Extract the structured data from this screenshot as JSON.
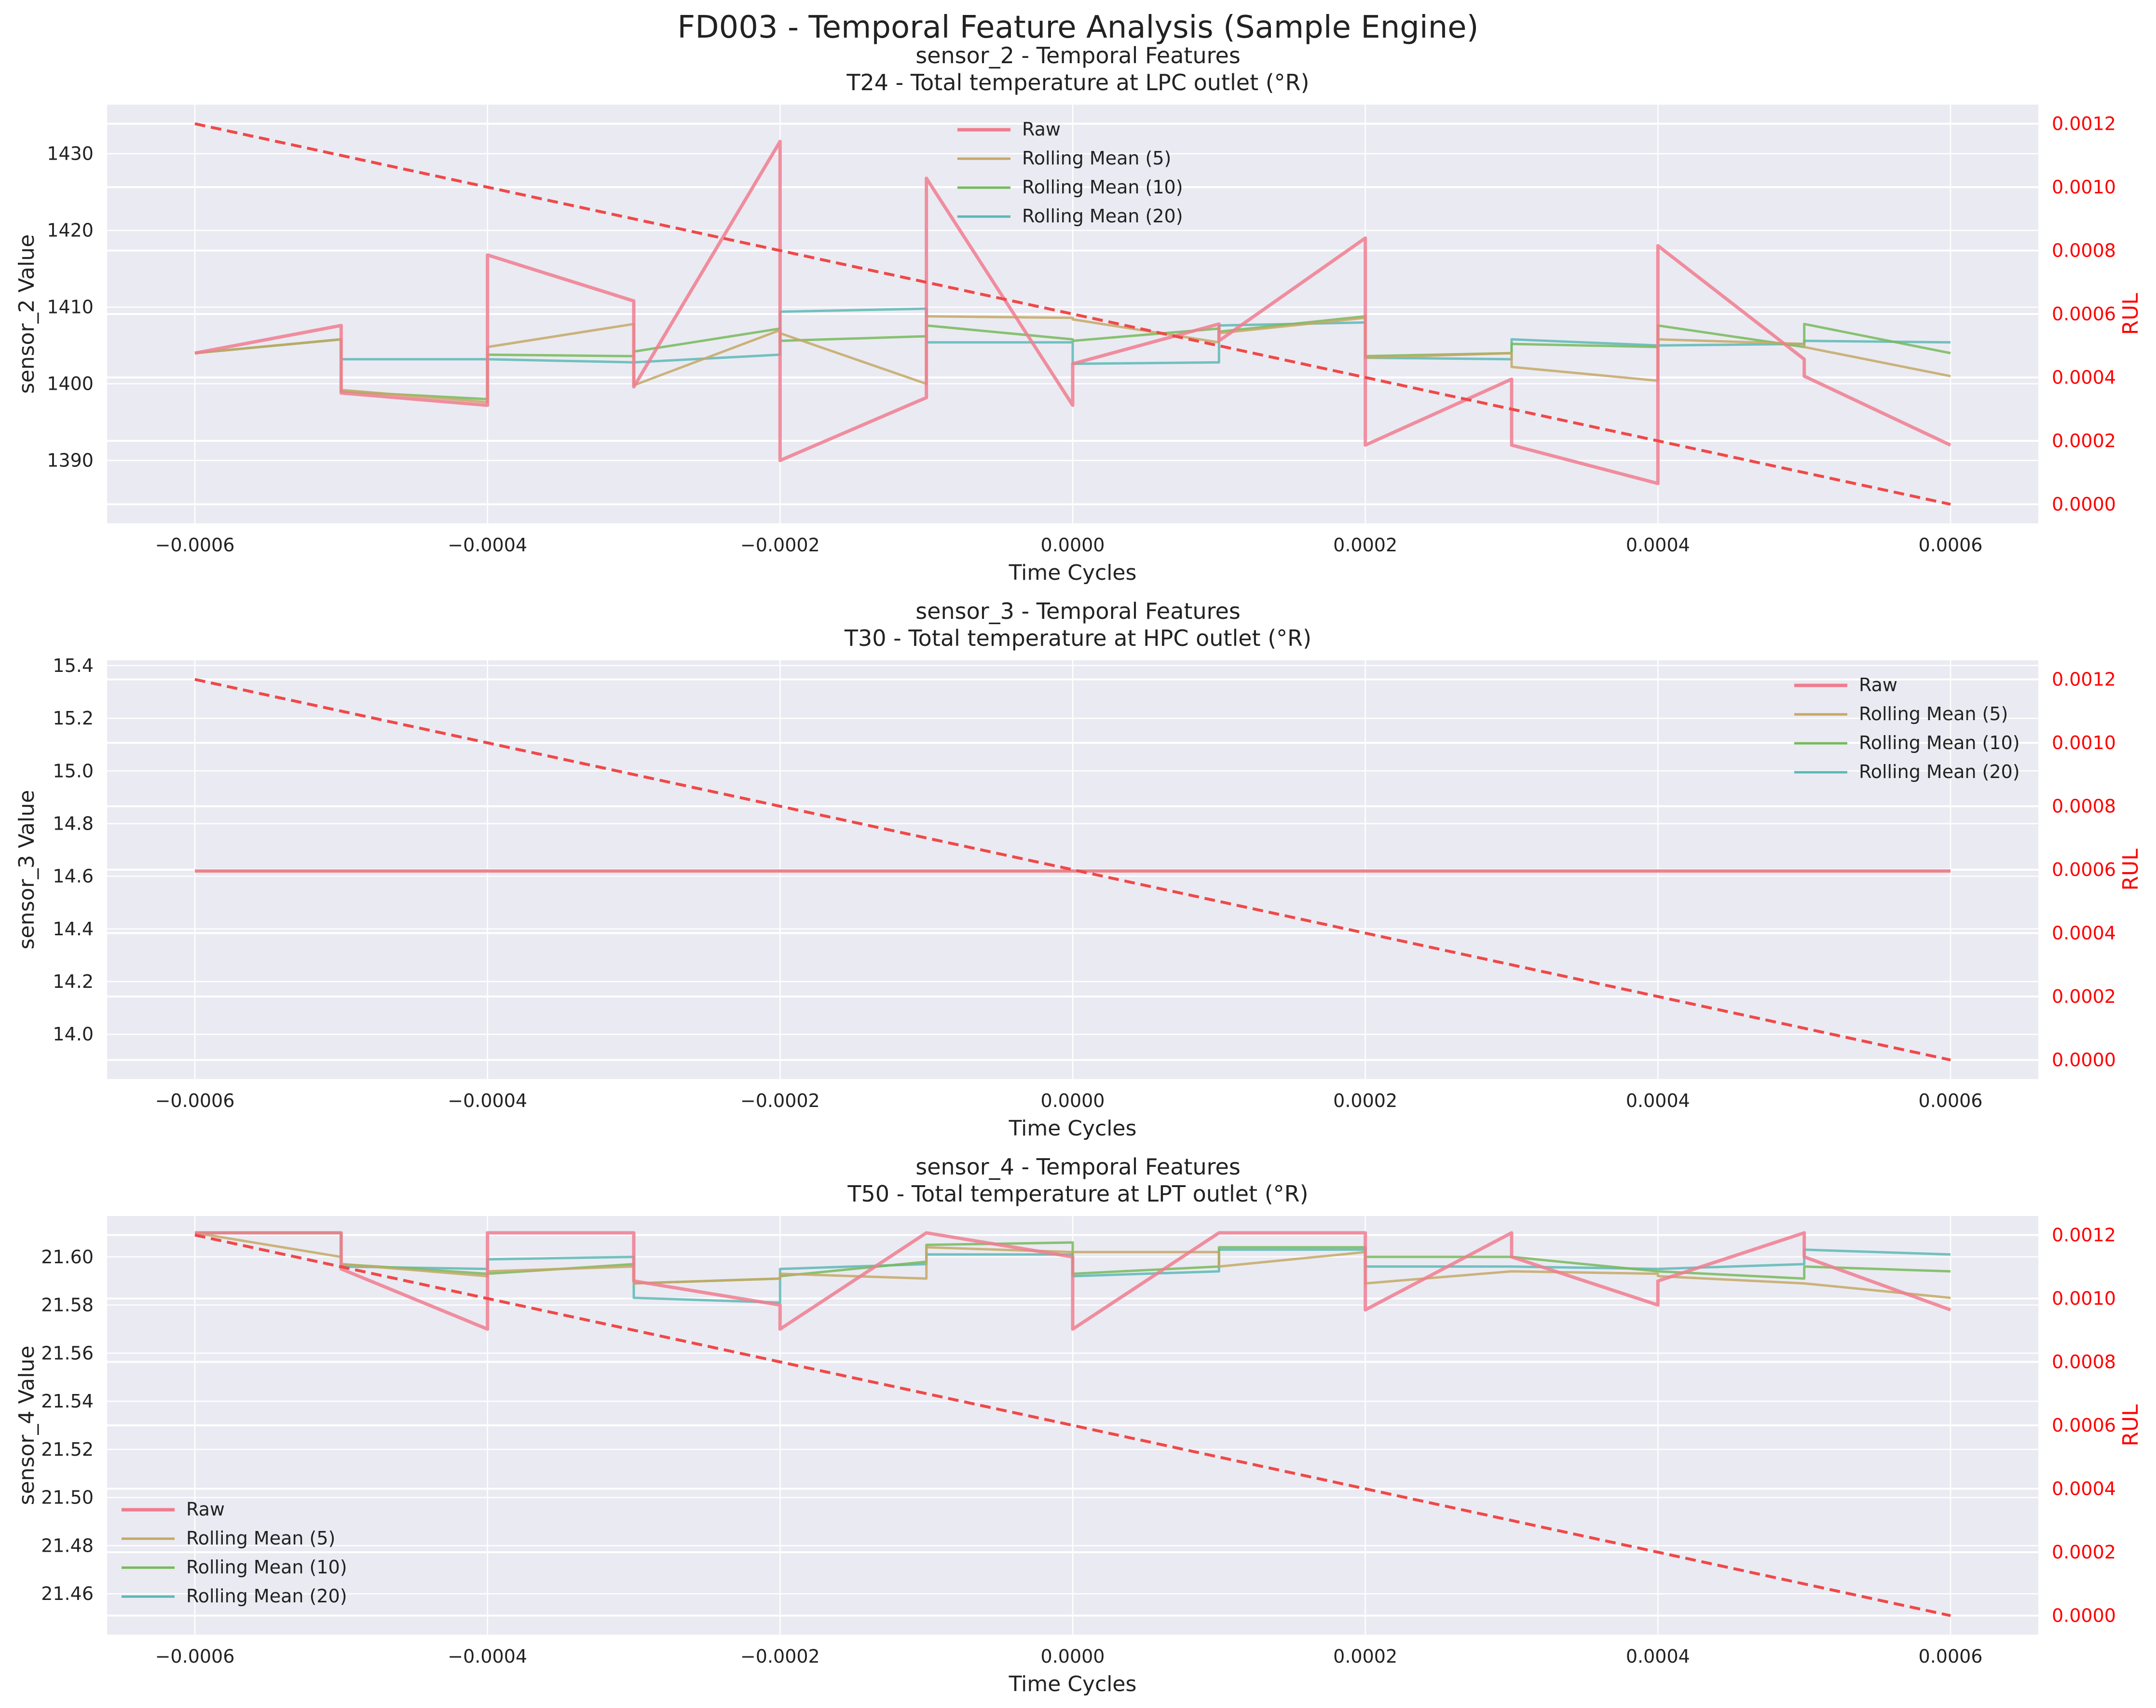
{
  "figure": {
    "suptitle": "FD003 - Temporal Feature Analysis (Sample Engine)"
  },
  "colors": {
    "raw": "#f07c8f",
    "rm5": "#c4a865",
    "rm10": "#76ba5b",
    "rm20": "#5cb8b6",
    "rul": "#f04848",
    "axis_bg": "#eaeaf2",
    "rul_axis": "#ff0000"
  },
  "chart_data": [
    {
      "type": "line",
      "title": "sensor_2 - Temporal Features",
      "subtitle": "T24 - Total temperature at LPC outlet (°R)",
      "xlabel": "Time Cycles",
      "ylabel": "sensor_2 Value",
      "y2label": "RUL",
      "xlim": [
        -0.00066,
        0.00066
      ],
      "ylim": [
        1381.8,
        1436.4
      ],
      "y2lim": [
        -6e-05,
        0.00126
      ],
      "xticks": [
        -0.0006,
        -0.0004,
        -0.0002,
        0.0,
        0.0002,
        0.0004,
        0.0006
      ],
      "xtick_labels": [
        "−0.0006",
        "−0.0004",
        "−0.0002",
        "0.0000",
        "0.0002",
        "0.0004",
        "0.0006"
      ],
      "yticks": [
        1390,
        1400,
        1410,
        1420,
        1430
      ],
      "ytick_labels": [
        "1390",
        "1400",
        "1410",
        "1420",
        "1430"
      ],
      "y2ticks": [
        0.0,
        0.0002,
        0.0004,
        0.0006,
        0.0008,
        0.001,
        0.0012
      ],
      "y2tick_labels": [
        "0.0000",
        "0.0002",
        "0.0004",
        "0.0006",
        "0.0008",
        "0.0010",
        "0.0012"
      ],
      "legend_loc": "upper center",
      "legend": [
        "Raw",
        "Rolling Mean (5)",
        "Rolling Mean (10)",
        "Rolling Mean (20)"
      ],
      "series": [
        {
          "name": "Raw",
          "key": "raw",
          "x": [
            -0.0006,
            -0.0005,
            -0.0005,
            -0.0004,
            -0.0004,
            -0.0003,
            -0.0003,
            -0.0002,
            -0.0002,
            -0.0001,
            -0.0001,
            0.0,
            0.0,
            0.0001,
            0.0001,
            0.0002,
            0.0002,
            0.0003,
            0.0003,
            0.0004,
            0.0004,
            0.0005,
            0.0005,
            0.0006
          ],
          "y": [
            1404,
            1407.6,
            1398.8,
            1397.2,
            1416.8,
            1410.8,
            1399.6,
            1431.6,
            1390,
            1398.2,
            1426.8,
            1397.2,
            1402.6,
            1407.8,
            1405.6,
            1419,
            1392,
            1400.6,
            1392,
            1387,
            1418,
            1403.2,
            1401,
            1392
          ]
        },
        {
          "name": "Rolling Mean (5)",
          "key": "rm5",
          "x": [
            -0.0006,
            -0.0005,
            -0.0005,
            -0.0004,
            -0.0004,
            -0.0003,
            -0.0003,
            -0.0002,
            -0.0002,
            -0.0001,
            -0.0001,
            0.0,
            0.0,
            0.0001,
            0.0001,
            0.0002,
            0.0002,
            0.0003,
            0.0003,
            0.0004,
            0.0004,
            0.0005,
            0.0005,
            0.0006
          ],
          "y": [
            1404,
            1405.8,
            1399.2,
            1397.6,
            1404.8,
            1407.8,
            1399.8,
            1407,
            1406.6,
            1400,
            1408.8,
            1408.6,
            1408.4,
            1405.4,
            1406.6,
            1408.6,
            1403.4,
            1404,
            1402.2,
            1400.4,
            1405.8,
            1405.2,
            1404.8,
            1401
          ]
        },
        {
          "name": "Rolling Mean (10)",
          "key": "rm10",
          "x": [
            -0.0006,
            -0.0005,
            -0.0005,
            -0.0004,
            -0.0004,
            -0.0003,
            -0.0003,
            -0.0002,
            -0.0002,
            -0.0001,
            -0.0001,
            0.0,
            0.0,
            0.0001,
            0.0001,
            0.0002,
            0.0002,
            0.0003,
            0.0003,
            0.0004,
            0.0004,
            0.0005,
            0.0005,
            0.0006
          ],
          "y": [
            1404,
            1405.8,
            1399,
            1398,
            1403.8,
            1403.6,
            1404.2,
            1407.2,
            1405.6,
            1406.2,
            1407.6,
            1405.8,
            1405.6,
            1407.2,
            1406.8,
            1408.8,
            1403.6,
            1404,
            1405.2,
            1404.8,
            1407.6,
            1404.8,
            1407.8,
            1404
          ]
        },
        {
          "name": "Rolling Mean (20)",
          "key": "rm20",
          "x": [
            -0.0006,
            -0.0005,
            -0.0005,
            -0.0004,
            -0.0004,
            -0.0003,
            -0.0003,
            -0.0002,
            -0.0002,
            -0.0001,
            -0.0001,
            0.0,
            0.0,
            0.0001,
            0.0001,
            0.0002,
            0.0002,
            0.0003,
            0.0003,
            0.0004,
            0.0004,
            0.0005,
            0.0005,
            0.0006
          ],
          "y": [
            1404,
            1405.8,
            1403.2,
            1403.2,
            1403.2,
            1402.8,
            1402.8,
            1403.8,
            1409.4,
            1409.8,
            1405.4,
            1405.4,
            1402.6,
            1402.8,
            1407.6,
            1408,
            1403.4,
            1403.2,
            1405.8,
            1405.0,
            1405.0,
            1405.2,
            1405.6,
            1405.4
          ]
        },
        {
          "name": "RUL",
          "key": "rul",
          "x": [
            -0.0006,
            0.0006
          ],
          "y": [
            0.0012,
            0.0
          ]
        }
      ]
    },
    {
      "type": "line",
      "title": "sensor_3 - Temporal Features",
      "subtitle": "T30 - Total temperature at HPC outlet (°R)",
      "xlabel": "Time Cycles",
      "ylabel": "sensor_3 Value",
      "y2label": "RUL",
      "xlim": [
        -0.00066,
        0.00066
      ],
      "ylim": [
        13.83,
        15.42
      ],
      "y2lim": [
        -6e-05,
        0.00126
      ],
      "xticks": [
        -0.0006,
        -0.0004,
        -0.0002,
        0.0,
        0.0002,
        0.0004,
        0.0006
      ],
      "xtick_labels": [
        "−0.0006",
        "−0.0004",
        "−0.0002",
        "0.0000",
        "0.0002",
        "0.0004",
        "0.0006"
      ],
      "yticks": [
        14.0,
        14.2,
        14.4,
        14.6,
        14.8,
        15.0,
        15.2,
        15.4
      ],
      "ytick_labels": [
        "14.0",
        "14.2",
        "14.4",
        "14.6",
        "14.8",
        "15.0",
        "15.2",
        "15.4"
      ],
      "y2ticks": [
        0.0,
        0.0002,
        0.0004,
        0.0006,
        0.0008,
        0.001,
        0.0012
      ],
      "y2tick_labels": [
        "0.0000",
        "0.0002",
        "0.0004",
        "0.0006",
        "0.0008",
        "0.0010",
        "0.0012"
      ],
      "legend_loc": "upper right",
      "legend": [
        "Raw",
        "Rolling Mean (5)",
        "Rolling Mean (10)",
        "Rolling Mean (20)"
      ],
      "series": [
        {
          "name": "Raw",
          "key": "raw",
          "x": [
            -0.0006,
            0.0006
          ],
          "y": [
            14.62,
            14.62
          ]
        },
        {
          "name": "Rolling Mean (5)",
          "key": "rm5",
          "x": [
            -0.0006,
            0.0006
          ],
          "y": [
            14.62,
            14.62
          ]
        },
        {
          "name": "Rolling Mean (10)",
          "key": "rm10",
          "x": [
            -0.0006,
            0.0006
          ],
          "y": [
            14.62,
            14.62
          ]
        },
        {
          "name": "Rolling Mean (20)",
          "key": "rm20",
          "x": [
            -0.0006,
            0.0006
          ],
          "y": [
            14.62,
            14.62
          ]
        },
        {
          "name": "RUL",
          "key": "rul",
          "x": [
            -0.0006,
            0.0006
          ],
          "y": [
            0.0012,
            0.0
          ]
        }
      ]
    },
    {
      "type": "line",
      "title": "sensor_4 - Temporal Features",
      "subtitle": "T50 - Total temperature at LPT outlet (°R)",
      "xlabel": "Time Cycles",
      "ylabel": "sensor_4 Value",
      "y2label": "RUL",
      "xlim": [
        -0.00066,
        0.00066
      ],
      "ylim": [
        21.443,
        21.617
      ],
      "y2lim": [
        -6e-05,
        0.00126
      ],
      "xticks": [
        -0.0006,
        -0.0004,
        -0.0002,
        0.0,
        0.0002,
        0.0004,
        0.0006
      ],
      "xtick_labels": [
        "−0.0006",
        "−0.0004",
        "−0.0002",
        "0.0000",
        "0.0002",
        "0.0004",
        "0.0006"
      ],
      "yticks": [
        21.46,
        21.48,
        21.5,
        21.52,
        21.54,
        21.56,
        21.58,
        21.6
      ],
      "ytick_labels": [
        "21.46",
        "21.48",
        "21.50",
        "21.52",
        "21.54",
        "21.56",
        "21.58",
        "21.60"
      ],
      "y2ticks": [
        0.0,
        0.0002,
        0.0004,
        0.0006,
        0.0008,
        0.001,
        0.0012
      ],
      "y2tick_labels": [
        "0.0000",
        "0.0002",
        "0.0004",
        "0.0006",
        "0.0008",
        "0.0010",
        "0.0012"
      ],
      "legend_loc": "lower left",
      "legend": [
        "Raw",
        "Rolling Mean (5)",
        "Rolling Mean (10)",
        "Rolling Mean (20)"
      ],
      "series": [
        {
          "name": "Raw",
          "key": "raw",
          "x": [
            -0.0006,
            -0.0005,
            -0.0005,
            -0.0004,
            -0.0004,
            -0.0003,
            -0.0003,
            -0.0002,
            -0.0002,
            -0.0001,
            -0.0001,
            0.0,
            0.0,
            0.0001,
            0.0001,
            0.0002,
            0.0002,
            0.0003,
            0.0003,
            0.0004,
            0.0004,
            0.0005,
            0.0005,
            0.0006
          ],
          "y": [
            21.61,
            21.61,
            21.595,
            21.57,
            21.61,
            21.61,
            21.59,
            21.58,
            21.57,
            21.61,
            21.61,
            21.6,
            21.57,
            21.61,
            21.61,
            21.61,
            21.578,
            21.61,
            21.6,
            21.58,
            21.59,
            21.61,
            21.6,
            21.578
          ]
        },
        {
          "name": "Rolling Mean (5)",
          "key": "rm5",
          "x": [
            -0.0006,
            -0.0005,
            -0.0005,
            -0.0004,
            -0.0004,
            -0.0003,
            -0.0003,
            -0.0002,
            -0.0002,
            -0.0001,
            -0.0001,
            0.0,
            0.0,
            0.0001,
            0.0001,
            0.0002,
            0.0002,
            0.0003,
            0.0003,
            0.0004,
            0.0004,
            0.0005,
            0.0005,
            0.0006
          ],
          "y": [
            21.61,
            21.6,
            21.597,
            21.592,
            21.594,
            21.596,
            21.589,
            21.591,
            21.593,
            21.591,
            21.604,
            21.602,
            21.602,
            21.602,
            21.596,
            21.602,
            21.589,
            21.594,
            21.594,
            21.593,
            21.592,
            21.589,
            21.589,
            21.583
          ]
        },
        {
          "name": "Rolling Mean (10)",
          "key": "rm10",
          "x": [
            -0.0006,
            -0.0005,
            -0.0005,
            -0.0004,
            -0.0004,
            -0.0003,
            -0.0003,
            -0.0002,
            -0.0002,
            -0.0001,
            -0.0001,
            0.0,
            0.0,
            0.0001,
            0.0001,
            0.0002,
            0.0002,
            0.0003,
            0.0003,
            0.0004,
            0.0004,
            0.0005,
            0.0005,
            0.0006
          ],
          "y": [
            21.61,
            21.61,
            21.597,
            21.593,
            21.593,
            21.597,
            21.589,
            21.591,
            21.592,
            21.598,
            21.605,
            21.606,
            21.593,
            21.596,
            21.604,
            21.604,
            21.6,
            21.6,
            21.6,
            21.594,
            21.594,
            21.591,
            21.596,
            21.594
          ]
        },
        {
          "name": "Rolling Mean (20)",
          "key": "rm20",
          "x": [
            -0.0006,
            -0.0005,
            -0.0005,
            -0.0004,
            -0.0004,
            -0.0003,
            -0.0003,
            -0.0002,
            -0.0002,
            -0.0001,
            -0.0001,
            0.0,
            0.0,
            0.0001,
            0.0001,
            0.0002,
            0.0002,
            0.0003,
            0.0003,
            0.0004,
            0.0004,
            0.0005,
            0.0005,
            0.0006
          ],
          "y": [
            21.61,
            21.61,
            21.596,
            21.595,
            21.599,
            21.6,
            21.583,
            21.581,
            21.595,
            21.597,
            21.601,
            21.601,
            21.592,
            21.594,
            21.603,
            21.603,
            21.596,
            21.596,
            21.596,
            21.595,
            21.595,
            21.597,
            21.603,
            21.601
          ]
        },
        {
          "name": "RUL",
          "key": "rul",
          "x": [
            -0.0006,
            0.0006
          ],
          "y": [
            0.0012,
            0.0
          ]
        }
      ]
    }
  ]
}
